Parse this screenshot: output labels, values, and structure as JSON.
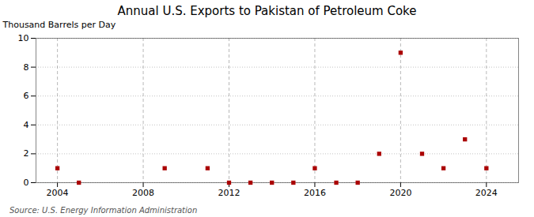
{
  "chart_data": {
    "type": "scatter",
    "title": "Annual U.S. Exports to Pakistan of Petroleum Coke",
    "ylabel": "Thousand Barrels per Day",
    "caption": "Source: U.S. Energy Information Administration",
    "x": [
      2004,
      2005,
      2009,
      2011,
      2012,
      2013,
      2014,
      2015,
      2016,
      2017,
      2018,
      2019,
      2020,
      2021,
      2022,
      2023,
      2024
    ],
    "values": [
      1,
      0,
      1,
      1,
      0,
      0,
      0,
      0,
      1,
      0,
      0,
      2,
      9,
      2,
      1,
      3,
      1
    ],
    "color": "#aa0000",
    "marker": "square",
    "xlim": [
      2003.0,
      2025.5
    ],
    "xticks": [
      2004,
      2008,
      2012,
      2016,
      2020,
      2024
    ],
    "ylim": [
      0,
      10
    ],
    "yticks": [
      0,
      2,
      4,
      6,
      8,
      10
    ],
    "grid": true
  }
}
